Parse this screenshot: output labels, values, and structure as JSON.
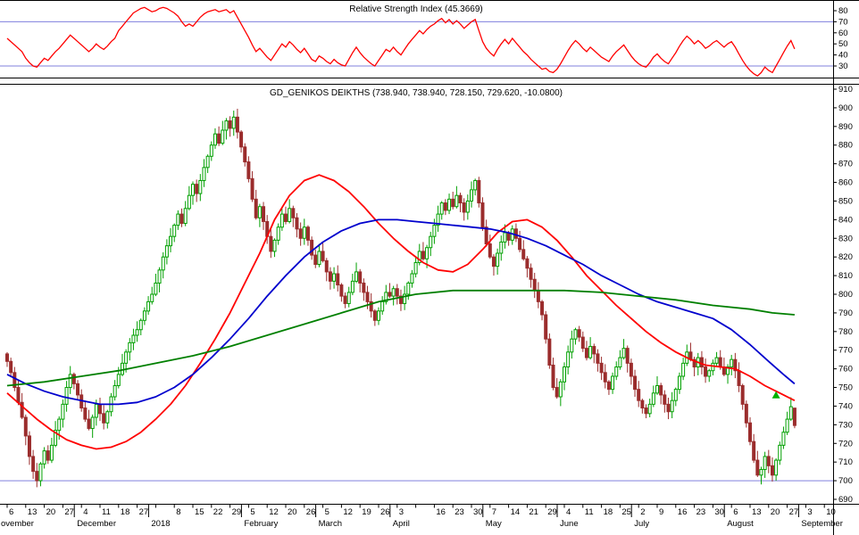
{
  "chart_data": [
    {
      "id": "rsi",
      "type": "line",
      "title": "Relative Strength Index (45.3669)",
      "last_value": 45.3669,
      "ylabel_ticks": [
        80,
        70,
        60,
        50,
        40,
        30
      ],
      "ylim": [
        20,
        86
      ],
      "hlines": [
        70,
        30
      ],
      "hline_color": "#8080dd",
      "line_color": "#ff0000",
      "grid": "off",
      "legend": "none",
      "values": [
        55,
        52,
        49,
        46,
        43,
        37,
        33,
        30,
        29,
        33,
        37,
        35,
        39,
        43,
        46,
        50,
        54,
        58,
        55,
        52,
        49,
        46,
        43,
        46,
        50,
        47,
        45,
        48,
        52,
        55,
        62,
        66,
        70,
        74,
        78,
        80,
        82,
        83,
        81,
        79,
        80,
        82,
        83,
        82,
        80,
        78,
        75,
        70,
        66,
        68,
        66,
        70,
        74,
        77,
        79,
        80,
        81,
        79,
        80,
        81,
        78,
        80,
        74,
        68,
        62,
        56,
        49,
        43,
        46,
        42,
        38,
        35,
        40,
        45,
        50,
        47,
        52,
        49,
        45,
        42,
        46,
        41,
        36,
        34,
        39,
        37,
        34,
        32,
        36,
        33,
        31,
        30,
        36,
        42,
        47,
        42,
        38,
        35,
        32,
        30,
        35,
        40,
        45,
        43,
        47,
        43,
        40,
        45,
        50,
        54,
        58,
        62,
        59,
        63,
        66,
        68,
        71,
        73,
        69,
        72,
        68,
        71,
        68,
        64,
        67,
        70,
        72,
        62,
        52,
        46,
        42,
        39,
        45,
        50,
        54,
        50,
        55,
        51,
        47,
        43,
        40,
        36,
        33,
        30,
        27,
        28,
        25,
        24,
        27,
        32,
        38,
        44,
        49,
        53,
        50,
        46,
        43,
        47,
        44,
        41,
        38,
        36,
        34,
        39,
        43,
        46,
        49,
        44,
        39,
        35,
        32,
        30,
        29,
        33,
        38,
        41,
        37,
        34,
        32,
        37,
        42,
        48,
        53,
        57,
        54,
        50,
        53,
        50,
        46,
        48,
        51,
        53,
        50,
        47,
        50,
        52,
        47,
        41,
        35,
        30,
        26,
        23,
        21,
        24,
        29,
        26,
        24,
        30,
        36,
        42,
        48,
        53,
        45.37
      ]
    },
    {
      "id": "price",
      "type": "candlestick",
      "title": "GD_GENIKOS DEIKTHS (738.940, 738.940, 728.150, 729.620, -10.0800)",
      "quote": {
        "open": 738.94,
        "high": 738.94,
        "low": 728.15,
        "close": 729.62,
        "change": -10.08
      },
      "ylabel_ticks": [
        910,
        900,
        890,
        880,
        870,
        860,
        850,
        840,
        830,
        820,
        810,
        800,
        790,
        780,
        770,
        760,
        750,
        740,
        730,
        720,
        710,
        700,
        690
      ],
      "ylim": [
        687,
        913
      ],
      "hlines": [
        700
      ],
      "hline_color": "#8080dd",
      "up_color": "#00a000",
      "down_color": "#9b2d2d",
      "grid": "off",
      "legend": "none",
      "first_open": 768,
      "closes": [
        764,
        758,
        750,
        742,
        734,
        724,
        713,
        705,
        700,
        709,
        716,
        711,
        719,
        727,
        733,
        741,
        750,
        757,
        752,
        746,
        739,
        733,
        728,
        734,
        741,
        736,
        731,
        737,
        745,
        751,
        757,
        763,
        769,
        774,
        778,
        781,
        786,
        791,
        796,
        800,
        806,
        813,
        820,
        826,
        831,
        837,
        843,
        838,
        846,
        853,
        859,
        854,
        861,
        868,
        874,
        880,
        886,
        881,
        888,
        893,
        889,
        895,
        887,
        879,
        871,
        862,
        851,
        841,
        847,
        839,
        831,
        823,
        829,
        836,
        843,
        839,
        846,
        841,
        835,
        830,
        836,
        829,
        821,
        816,
        823,
        818,
        812,
        807,
        811,
        805,
        799,
        795,
        801,
        807,
        812,
        806,
        801,
        796,
        791,
        786,
        791,
        796,
        801,
        799,
        803,
        799,
        795,
        800,
        806,
        811,
        817,
        823,
        819,
        825,
        831,
        837,
        843,
        849,
        845,
        851,
        847,
        853,
        849,
        844,
        850,
        856,
        861,
        849,
        836,
        827,
        820,
        815,
        822,
        828,
        833,
        829,
        835,
        830,
        824,
        819,
        814,
        808,
        802,
        796,
        789,
        776,
        762,
        750,
        745,
        753,
        761,
        769,
        776,
        781,
        777,
        771,
        766,
        772,
        768,
        763,
        758,
        753,
        749,
        756,
        761,
        766,
        771,
        763,
        756,
        749,
        743,
        739,
        736,
        741,
        747,
        751,
        746,
        741,
        737,
        743,
        749,
        756,
        763,
        769,
        765,
        761,
        766,
        761,
        756,
        759,
        763,
        766,
        761,
        757,
        761,
        765,
        759,
        751,
        741,
        731,
        721,
        711,
        703,
        706,
        713,
        708,
        703,
        711,
        719,
        726,
        733,
        739.7,
        729.62
      ],
      "last_candle": {
        "open": 738.94,
        "high": 738.94,
        "low": 728.15,
        "close": 729.62
      },
      "moving_averages": [
        {
          "name": "ma-fast-red",
          "color": "#ff0000",
          "points": [
            [
              0,
              747
            ],
            [
              4,
              740
            ],
            [
              8,
              733
            ],
            [
              12,
              727
            ],
            [
              16,
              722
            ],
            [
              20,
              719
            ],
            [
              24,
              717
            ],
            [
              28,
              718
            ],
            [
              32,
              721
            ],
            [
              36,
              726
            ],
            [
              40,
              733
            ],
            [
              44,
              741
            ],
            [
              48,
              751
            ],
            [
              52,
              763
            ],
            [
              56,
              776
            ],
            [
              60,
              790
            ],
            [
              64,
              806
            ],
            [
              68,
              822
            ],
            [
              72,
              840
            ],
            [
              76,
              853
            ],
            [
              80,
              861
            ],
            [
              84,
              864
            ],
            [
              88,
              861
            ],
            [
              92,
              855
            ],
            [
              96,
              847
            ],
            [
              100,
              838
            ],
            [
              104,
              830
            ],
            [
              108,
              823
            ],
            [
              112,
              817
            ],
            [
              116,
              813
            ],
            [
              120,
              812
            ],
            [
              124,
              816
            ],
            [
              128,
              824
            ],
            [
              132,
              833
            ],
            [
              136,
              839
            ],
            [
              140,
              840
            ],
            [
              144,
              836
            ],
            [
              148,
              829
            ],
            [
              152,
              820
            ],
            [
              156,
              810
            ],
            [
              160,
              802
            ],
            [
              164,
              794
            ],
            [
              168,
              787
            ],
            [
              172,
              780
            ],
            [
              176,
              774
            ],
            [
              180,
              769
            ],
            [
              184,
              765
            ],
            [
              188,
              762
            ],
            [
              192,
              761
            ],
            [
              196,
              760
            ],
            [
              200,
              756
            ],
            [
              204,
              751
            ],
            [
              208,
              747
            ],
            [
              212,
              743
            ]
          ]
        },
        {
          "name": "ma-medium-blue",
          "color": "#0000cd",
          "points": [
            [
              0,
              757
            ],
            [
              5,
              752
            ],
            [
              10,
              748
            ],
            [
              15,
              745
            ],
            [
              20,
              743
            ],
            [
              25,
              741
            ],
            [
              30,
              741
            ],
            [
              35,
              742
            ],
            [
              40,
              745
            ],
            [
              45,
              750
            ],
            [
              50,
              757
            ],
            [
              55,
              766
            ],
            [
              60,
              776
            ],
            [
              65,
              787
            ],
            [
              70,
              799
            ],
            [
              75,
              810
            ],
            [
              80,
              820
            ],
            [
              85,
              828
            ],
            [
              90,
              834
            ],
            [
              95,
              838
            ],
            [
              100,
              840
            ],
            [
              105,
              840
            ],
            [
              110,
              839
            ],
            [
              115,
              838
            ],
            [
              120,
              837
            ],
            [
              125,
              836
            ],
            [
              130,
              835
            ],
            [
              135,
              833
            ],
            [
              140,
              830
            ],
            [
              145,
              826
            ],
            [
              150,
              821
            ],
            [
              155,
              816
            ],
            [
              160,
              810
            ],
            [
              165,
              805
            ],
            [
              170,
              800
            ],
            [
              175,
              796
            ],
            [
              180,
              793
            ],
            [
              185,
              790
            ],
            [
              190,
              787
            ],
            [
              195,
              781
            ],
            [
              200,
              773
            ],
            [
              205,
              764
            ],
            [
              209,
              757
            ],
            [
              212,
              752
            ]
          ]
        },
        {
          "name": "ma-slow-green",
          "color": "#008000",
          "points": [
            [
              0,
              751
            ],
            [
              10,
              753
            ],
            [
              20,
              756
            ],
            [
              30,
              759
            ],
            [
              40,
              763
            ],
            [
              50,
              767
            ],
            [
              60,
              772
            ],
            [
              70,
              778
            ],
            [
              80,
              784
            ],
            [
              90,
              790
            ],
            [
              100,
              796
            ],
            [
              110,
              800
            ],
            [
              120,
              802
            ],
            [
              130,
              802
            ],
            [
              140,
              802
            ],
            [
              150,
              802
            ],
            [
              160,
              801
            ],
            [
              170,
              799
            ],
            [
              180,
              797
            ],
            [
              190,
              794
            ],
            [
              200,
              792
            ],
            [
              206,
              790
            ],
            [
              212,
              789
            ]
          ]
        }
      ],
      "signal_arrow": {
        "day": 207,
        "price": 748,
        "color": "#00b000"
      }
    }
  ],
  "x_axis": {
    "slot_labels": [
      "6",
      "13",
      "20",
      "27",
      "4",
      "11",
      "18",
      "27",
      "",
      "8",
      "15",
      "22",
      "29",
      "5",
      "12",
      "20",
      "26",
      "5",
      "12",
      "19",
      "26",
      "3",
      "",
      "16",
      "23",
      "30",
      "7",
      "14",
      "21",
      "29",
      "4",
      "11",
      "18",
      "25",
      "2",
      "9",
      "16",
      "23",
      "30",
      "6",
      "13",
      "20",
      "27",
      "3",
      "10"
    ],
    "months": [
      {
        "slot": -0.5,
        "label": "ovember"
      },
      {
        "slot": 4,
        "label": "December"
      },
      {
        "slot": 8,
        "label": "2018"
      },
      {
        "slot": 13,
        "label": "February"
      },
      {
        "slot": 17,
        "label": "March"
      },
      {
        "slot": 21,
        "label": "April"
      },
      {
        "slot": 26,
        "label": "May"
      },
      {
        "slot": 30,
        "label": "June"
      },
      {
        "slot": 34,
        "label": "July"
      },
      {
        "slot": 39,
        "label": "August"
      },
      {
        "slot": 43,
        "label": "September"
      }
    ]
  },
  "colors": {
    "background": "#ffffff",
    "border": "#000000",
    "text": "#000000"
  }
}
